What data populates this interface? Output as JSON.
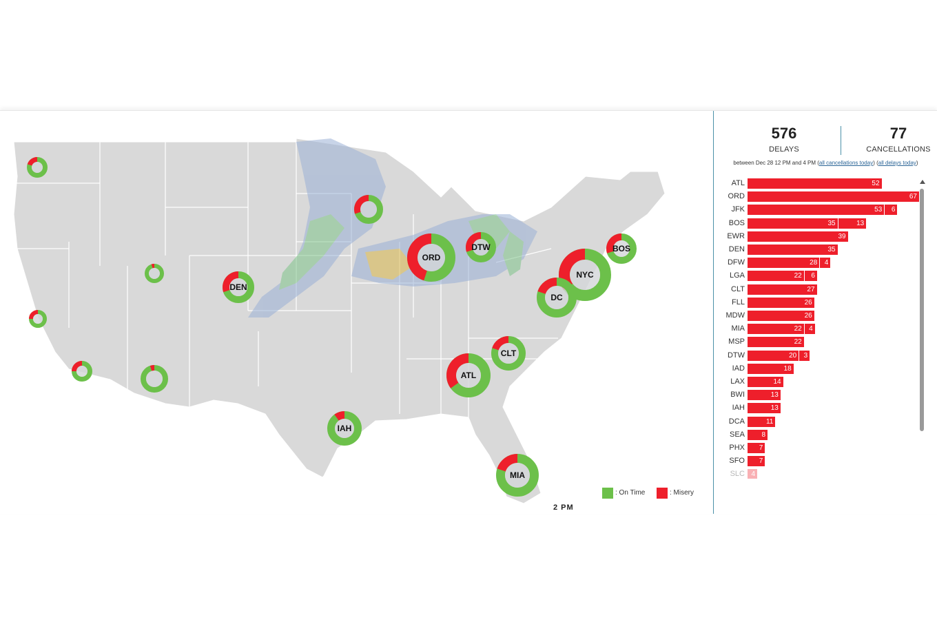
{
  "stats": {
    "delays": {
      "value": "576",
      "label": "DELAYS"
    },
    "cancellations": {
      "value": "77",
      "label": "CANCELLATIONS"
    }
  },
  "range": {
    "text": "between Dec 28 12 PM and 4 PM (",
    "link_cancellations": "all cancellations today",
    "sep": ") (",
    "link_delays": "all delays today",
    "end": ")"
  },
  "legend": {
    "on_time": ": On Time",
    "misery": ": Misery"
  },
  "time_label": "2 PM",
  "colors": {
    "on_time": "#6cc04a",
    "misery": "#ee1f2b",
    "land": "#d9d9d9",
    "border": "#ffffff",
    "accent": "#4a90a8"
  },
  "airports": [
    {
      "code": "ATL",
      "delays": 52,
      "cancellations": null
    },
    {
      "code": "ORD",
      "delays": 67,
      "cancellations": null
    },
    {
      "code": "JFK",
      "delays": 53,
      "cancellations": 6
    },
    {
      "code": "BOS",
      "delays": 35,
      "cancellations": 13
    },
    {
      "code": "EWR",
      "delays": 39,
      "cancellations": null
    },
    {
      "code": "DEN",
      "delays": 35,
      "cancellations": null
    },
    {
      "code": "DFW",
      "delays": 28,
      "cancellations": 4
    },
    {
      "code": "LGA",
      "delays": 22,
      "cancellations": 6
    },
    {
      "code": "CLT",
      "delays": 27,
      "cancellations": null
    },
    {
      "code": "FLL",
      "delays": 26,
      "cancellations": null
    },
    {
      "code": "MDW",
      "delays": 26,
      "cancellations": null
    },
    {
      "code": "MIA",
      "delays": 22,
      "cancellations": 4
    },
    {
      "code": "MSP",
      "delays": 22,
      "cancellations": null
    },
    {
      "code": "DTW",
      "delays": 20,
      "cancellations": 3
    },
    {
      "code": "IAD",
      "delays": 18,
      "cancellations": null
    },
    {
      "code": "LAX",
      "delays": 14,
      "cancellations": null
    },
    {
      "code": "BWI",
      "delays": 13,
      "cancellations": null
    },
    {
      "code": "IAH",
      "delays": 13,
      "cancellations": null
    },
    {
      "code": "DCA",
      "delays": 11,
      "cancellations": null
    },
    {
      "code": "SEA",
      "delays": 8,
      "cancellations": null
    },
    {
      "code": "PHX",
      "delays": 7,
      "cancellations": null
    },
    {
      "code": "SFO",
      "delays": 7,
      "cancellations": null
    },
    {
      "code": "SLC",
      "delays": 4,
      "cancellations": null
    }
  ],
  "map_markers": [
    {
      "label": "",
      "misery_share": 0.2
    },
    {
      "label": "",
      "misery_share": 0.3
    },
    {
      "label": "ORD",
      "misery_share": 0.45
    },
    {
      "label": "DTW",
      "misery_share": 0.3
    },
    {
      "label": "BOS",
      "misery_share": 0.3
    },
    {
      "label": "NYC",
      "misery_share": 0.35
    },
    {
      "label": "DC",
      "misery_share": 0.2
    },
    {
      "label": "DEN",
      "misery_share": 0.3
    },
    {
      "label": "",
      "misery_share": 0.05
    },
    {
      "label": "",
      "misery_share": 0.25
    },
    {
      "label": "",
      "misery_share": 0.25
    },
    {
      "label": "",
      "misery_share": 0.05
    },
    {
      "label": "CLT",
      "misery_share": 0.2
    },
    {
      "label": "ATL",
      "misery_share": 0.35
    },
    {
      "label": "IAH",
      "misery_share": 0.1
    },
    {
      "label": "MIA",
      "misery_share": 0.2
    }
  ]
}
